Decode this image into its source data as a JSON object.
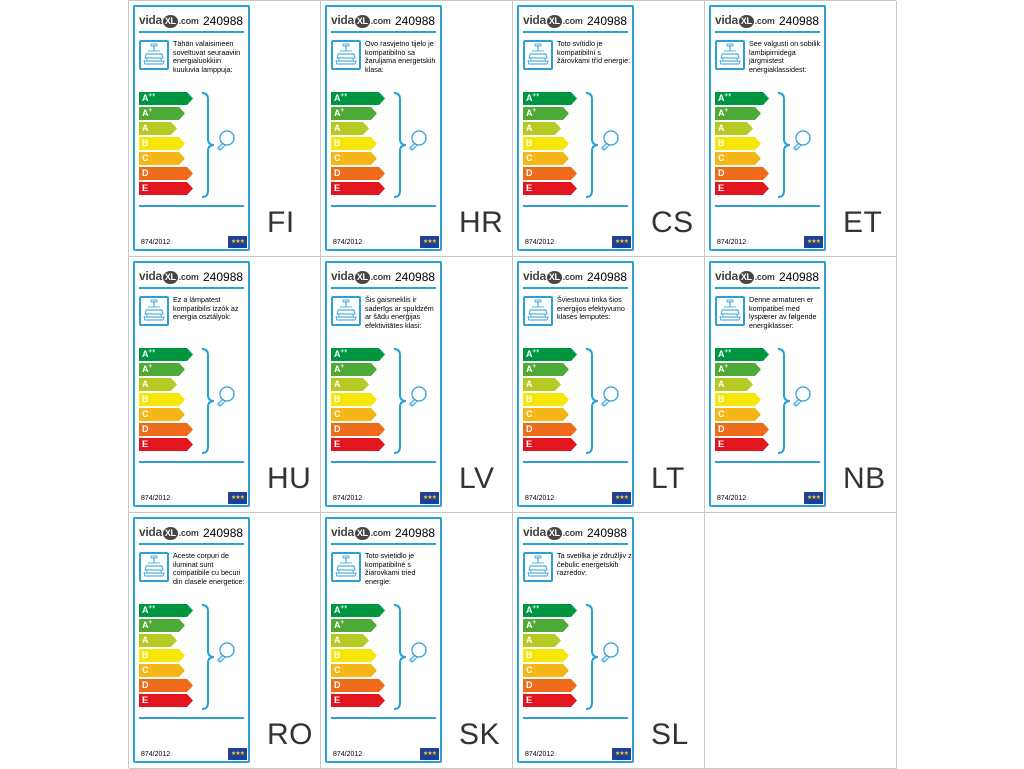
{
  "brand": {
    "name_left": "vida",
    "name_mid": "XL",
    "name_right": ".com"
  },
  "product_code": "240988",
  "regulation": "874/2012",
  "eu_flag_icon": "eu-flag-icon",
  "energy_classes": [
    {
      "base": "A",
      "sup": "++",
      "color": "#00963f"
    },
    {
      "base": "A",
      "sup": "+",
      "color": "#4daa37"
    },
    {
      "base": "A",
      "sup": "",
      "color": "#b5ca22"
    },
    {
      "base": "B",
      "sup": "",
      "color": "#f6e60a"
    },
    {
      "base": "C",
      "sup": "",
      "color": "#f7b518"
    },
    {
      "base": "D",
      "sup": "",
      "color": "#ee6b1b"
    },
    {
      "base": "E",
      "sup": "",
      "color": "#e2161f"
    }
  ],
  "labels": [
    {
      "lang": "FI",
      "text": "Tähän valaisimeen soveltuvat seuraaviin energialuokkiin kuuluvia lamppuja:"
    },
    {
      "lang": "HR",
      "text": "Ovo rasvjetno tijelo je kompatibilno sa žaruljama energetskih klasa:"
    },
    {
      "lang": "CS",
      "text": "Toto svítidlo je kompatibilní s žárovkami tříd energie:"
    },
    {
      "lang": "ET",
      "text": "See valgusti on sobilik lambipirnidega järgmistest energiaklassidest:"
    },
    {
      "lang": "HU",
      "text": "Ez a lámpatest kompatibilis izzók az energia osztályok:"
    },
    {
      "lang": "LV",
      "text": "Šis gaismeklis ir saderīgs ar spuldzēm ar šādu enerģijas efektivitātes klasi:"
    },
    {
      "lang": "LT",
      "text": "Šviestuvui tinka šios energijos efektyvumo klasės lemputės:"
    },
    {
      "lang": "NB",
      "text": "Denne armaturen er kompatibel med lyspærer av følgende energiklasser:"
    },
    {
      "lang": "RO",
      "text": "Aceste corpuri de iluminat sunt compatibile cu becuri din clasele energetice:"
    },
    {
      "lang": "SK",
      "text": "Toto svietidlo je kompatibilné s žiarovkami tried energie:"
    },
    {
      "lang": "SL",
      "text": "Ta svetilka je združljiv z čebulic energetskih razredov:"
    }
  ]
}
